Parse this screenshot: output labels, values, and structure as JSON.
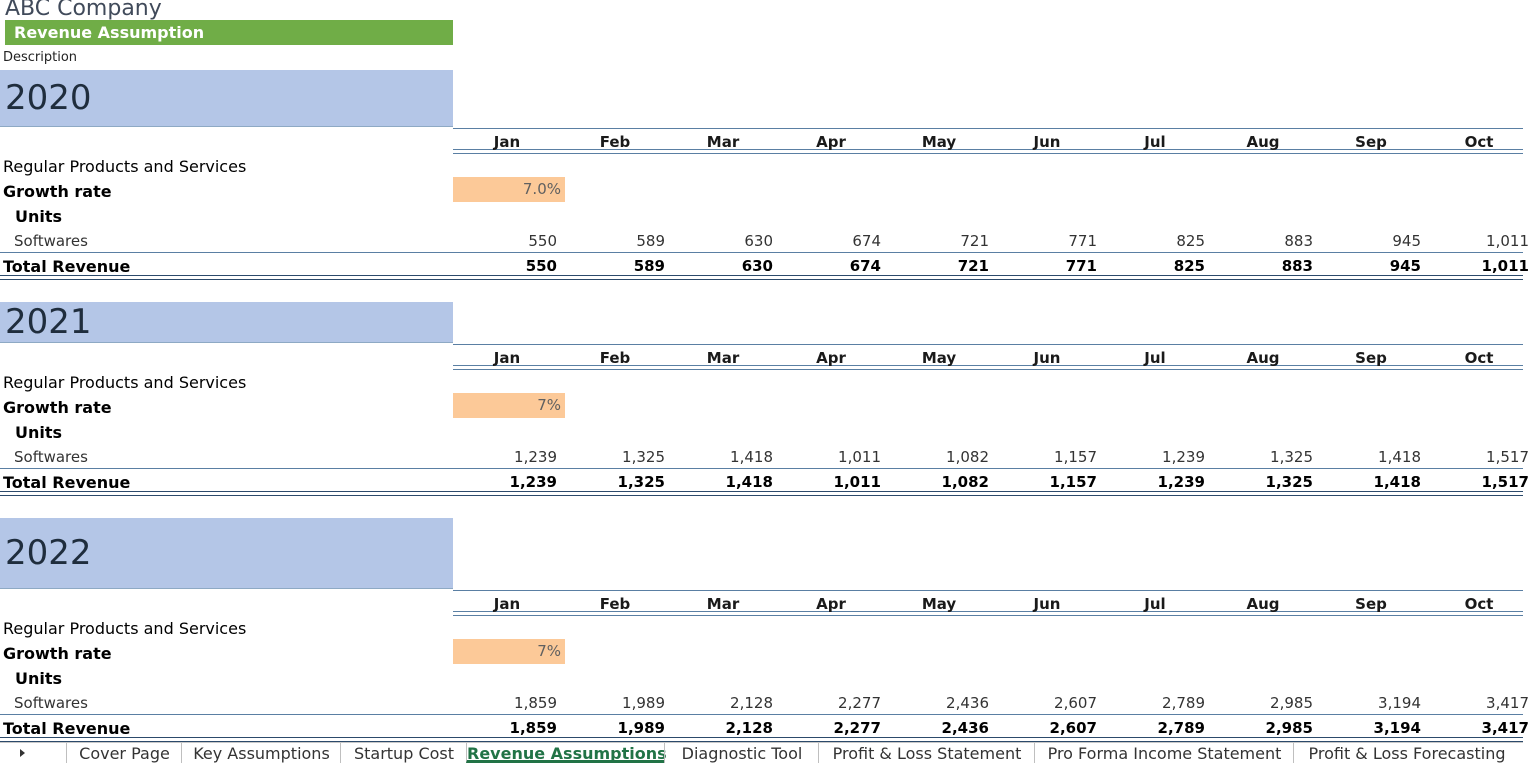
{
  "company": "ABC Company",
  "banner": "Revenue Assumption",
  "description_label": "Description",
  "months": [
    "Jan",
    "Feb",
    "Mar",
    "Apr",
    "May",
    "Jun",
    "Jul",
    "Aug",
    "Sep",
    "Oct"
  ],
  "row_labels": {
    "group": "Regular Products and Services",
    "growth": "Growth rate",
    "units": "Units",
    "softwares": "Softwares",
    "total": "Total Revenue"
  },
  "years": [
    {
      "year": "2020",
      "growth": "7.0%",
      "softwares": [
        "550",
        "589",
        "630",
        "674",
        "721",
        "771",
        "825",
        "883",
        "945",
        "1,011"
      ],
      "total": [
        "550",
        "589",
        "630",
        "674",
        "721",
        "771",
        "825",
        "883",
        "945",
        "1,011"
      ]
    },
    {
      "year": "2021",
      "growth": "7%",
      "softwares": [
        "1,239",
        "1,325",
        "1,418",
        "1,011",
        "1,082",
        "1,157",
        "1,239",
        "1,325",
        "1,418",
        "1,517"
      ],
      "total": [
        "1,239",
        "1,325",
        "1,418",
        "1,011",
        "1,082",
        "1,157",
        "1,239",
        "1,325",
        "1,418",
        "1,517"
      ]
    },
    {
      "year": "2022",
      "growth": "7%",
      "softwares": [
        "1,859",
        "1,989",
        "2,128",
        "2,277",
        "2,436",
        "2,607",
        "2,789",
        "2,985",
        "3,194",
        "3,417"
      ],
      "total": [
        "1,859",
        "1,989",
        "2,128",
        "2,277",
        "2,436",
        "2,607",
        "2,789",
        "2,985",
        "3,194",
        "3,417"
      ]
    }
  ],
  "sheet_tabs": [
    "Cover Page",
    "Key Assumptions",
    "Startup Cost",
    "Revenue Assumptions",
    "Diagnostic Tool",
    "Profit & Loss Statement",
    "Pro Forma Income Statement",
    "Profit & Loss Forecasting"
  ],
  "active_tab": "Revenue Assumptions",
  "colors": {
    "banner": "#70ad47",
    "year_fill": "#b4c6e7",
    "growth_fill": "#fcc998",
    "active_tab": "#217346"
  }
}
